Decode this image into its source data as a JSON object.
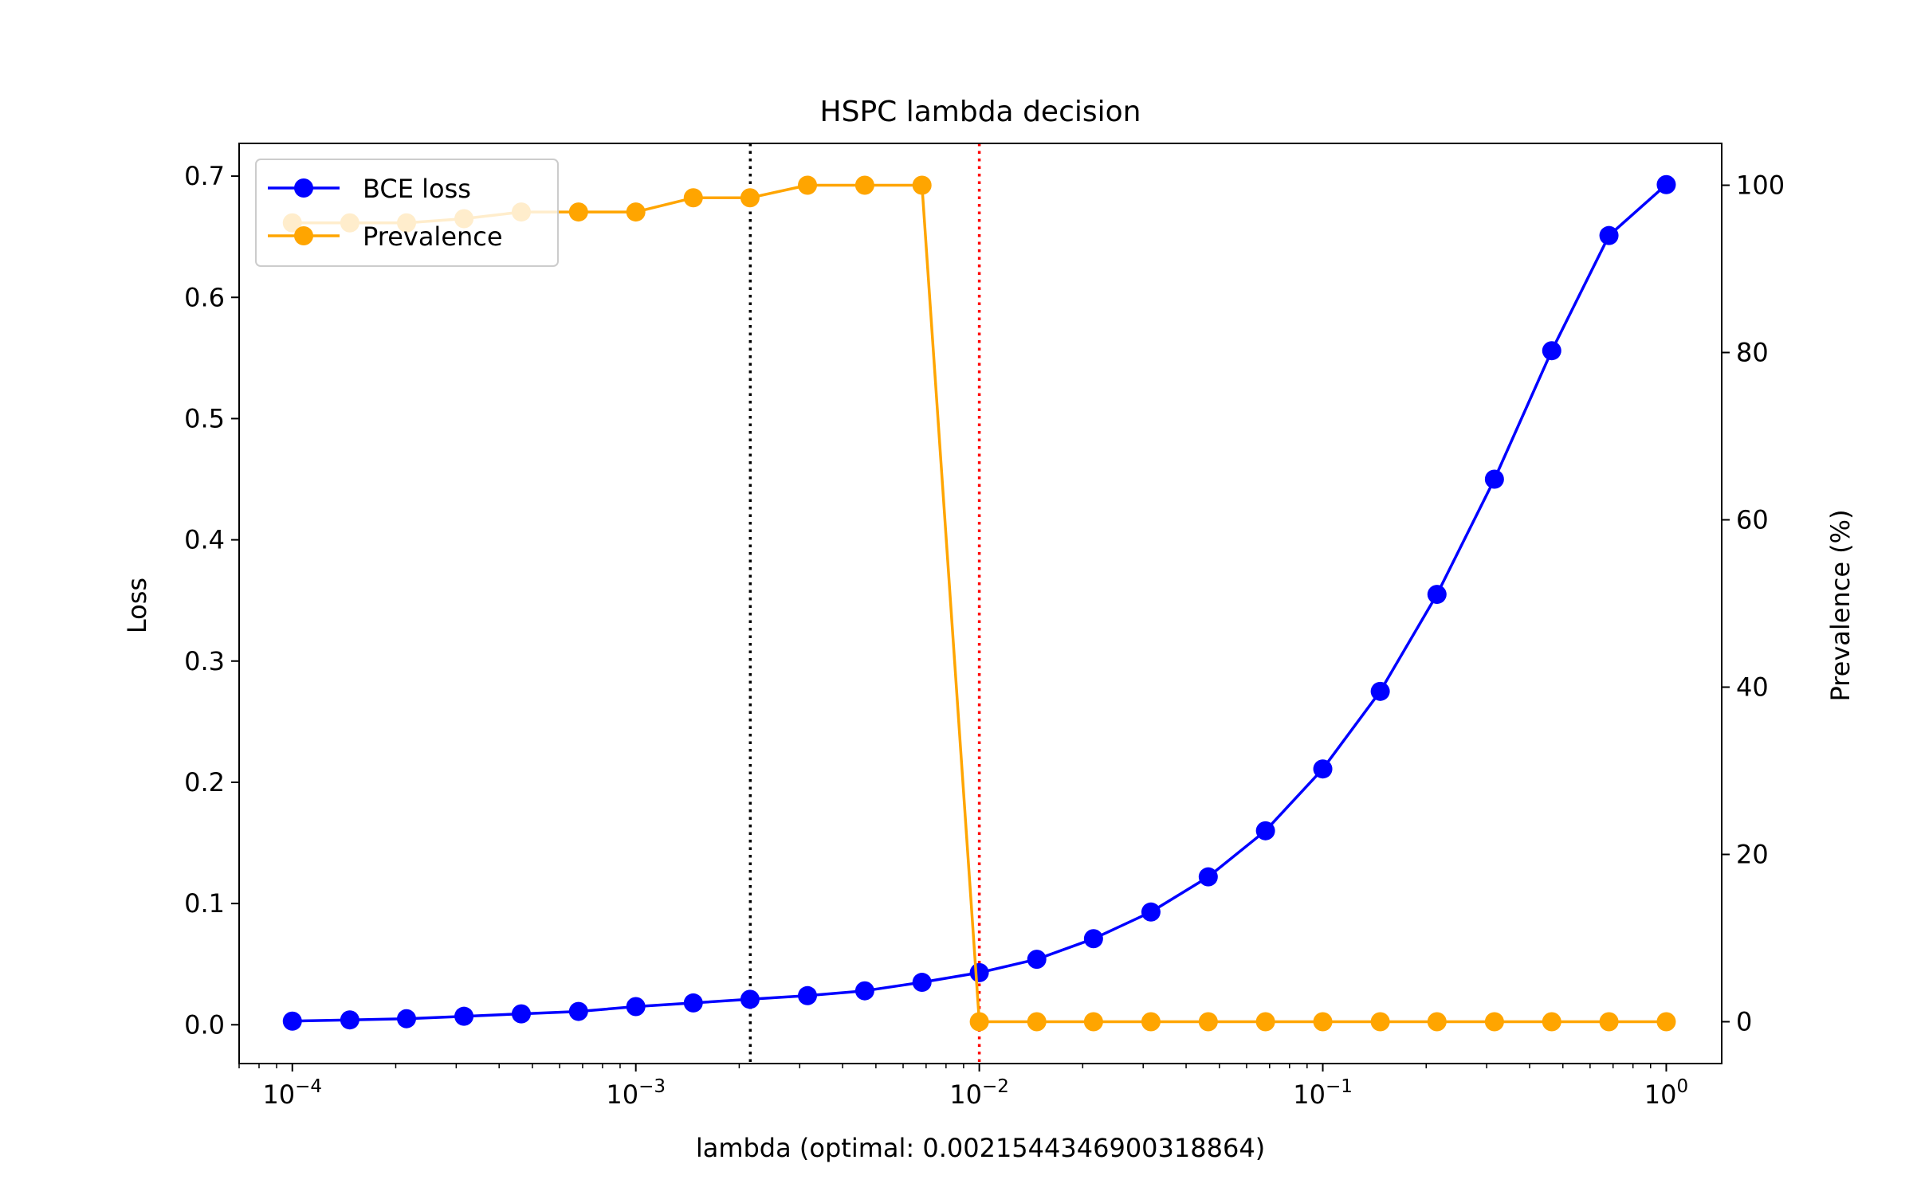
{
  "chart_data": {
    "type": "line",
    "title": "HSPC lambda decision",
    "xlabel": "lambda (optimal: 0.0021544346900318864)",
    "ylabel": "Loss",
    "y2label": "Prevalence (%)",
    "xscale": "log",
    "xlim": [
      7e-05,
      1.45
    ],
    "ylim": [
      -0.032,
      0.727
    ],
    "y2lim": [
      -5,
      105
    ],
    "x_ticks": [
      {
        "value": 0.0001,
        "base": "10",
        "exp": "−4"
      },
      {
        "value": 0.001,
        "base": "10",
        "exp": "−3"
      },
      {
        "value": 0.01,
        "base": "10",
        "exp": "−2"
      },
      {
        "value": 0.1,
        "base": "10",
        "exp": "−1"
      },
      {
        "value": 1,
        "base": "10",
        "exp": "0"
      }
    ],
    "y_ticks": [
      "0.0",
      "0.1",
      "0.2",
      "0.3",
      "0.4",
      "0.5",
      "0.6",
      "0.7"
    ],
    "y2_ticks": [
      "0",
      "20",
      "40",
      "60",
      "80",
      "100"
    ],
    "grid": false,
    "legend": "upper-left",
    "x": [
      0.0001,
      0.000147,
      0.000215,
      0.000316,
      0.000464,
      0.000681,
      0.001,
      0.00147,
      0.00215,
      0.00316,
      0.00464,
      0.00681,
      0.01,
      0.0147,
      0.0215,
      0.0316,
      0.0464,
      0.0681,
      0.1,
      0.147,
      0.215,
      0.316,
      0.464,
      0.681,
      1.0
    ],
    "series": [
      {
        "name": "BCE loss",
        "axis": "left",
        "color": "#0000ff",
        "values": [
          0.003,
          0.004,
          0.005,
          0.007,
          0.009,
          0.011,
          0.015,
          0.018,
          0.021,
          0.024,
          0.028,
          0.035,
          0.043,
          0.054,
          0.071,
          0.093,
          0.122,
          0.16,
          0.211,
          0.275,
          0.355,
          0.45,
          0.556,
          0.651,
          0.693
        ]
      },
      {
        "name": "Prevalence",
        "axis": "right",
        "color": "#ffa500",
        "values": [
          95.5,
          95.5,
          95.5,
          96.0,
          96.8,
          96.8,
          96.8,
          98.5,
          98.5,
          100,
          100,
          100,
          0,
          0,
          0,
          0,
          0,
          0,
          0,
          0,
          0,
          0,
          0,
          0,
          0
        ]
      }
    ],
    "vlines": [
      {
        "x": 0.0021544346900318864,
        "color": "#000000",
        "style": "dotted"
      },
      {
        "x": 0.01,
        "color": "#ff0000",
        "style": "dotted"
      }
    ]
  }
}
